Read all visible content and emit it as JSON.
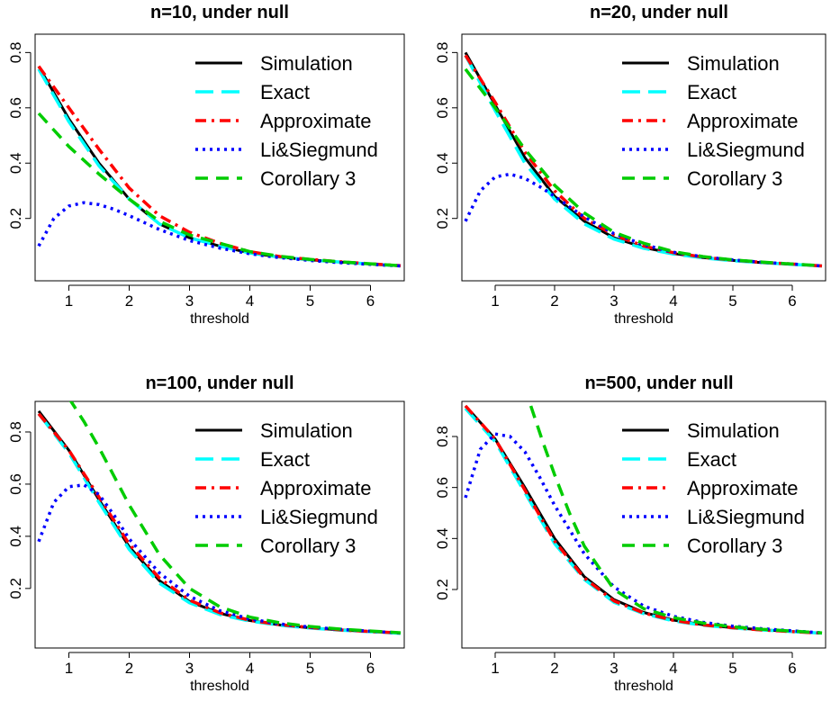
{
  "chart_data": [
    {
      "type": "line",
      "title": "n=10, under null",
      "xlabel": "threshold",
      "ylabel": "",
      "xlim": [
        0.5,
        6.5
      ],
      "ylim": [
        0.02,
        0.85
      ],
      "xticks": [
        "1",
        "2",
        "3",
        "4",
        "5",
        "6"
      ],
      "yticks": [
        "0.2",
        "0.4",
        "0.6",
        "0.8"
      ],
      "legend_position": "top-right",
      "series": [
        {
          "name": "Simulation",
          "color": "#000000",
          "style": "solid",
          "x": [
            0.5,
            1,
            1.5,
            2,
            2.5,
            3,
            3.5,
            4,
            4.5,
            5,
            5.5,
            6,
            6.5
          ],
          "y": [
            0.75,
            0.56,
            0.4,
            0.27,
            0.18,
            0.13,
            0.1,
            0.075,
            0.06,
            0.05,
            0.042,
            0.035,
            0.028
          ]
        },
        {
          "name": "Exact",
          "color": "#00ffff",
          "style": "longdash",
          "x": [
            0.5,
            1,
            1.5,
            2,
            2.5,
            3,
            3.5,
            4,
            4.5,
            5,
            5.5,
            6,
            6.5
          ],
          "y": [
            0.74,
            0.55,
            0.39,
            0.27,
            0.18,
            0.13,
            0.1,
            0.075,
            0.06,
            0.05,
            0.042,
            0.035,
            0.028
          ]
        },
        {
          "name": "Approximate",
          "color": "#ff0000",
          "style": "dotdash",
          "x": [
            0.5,
            1,
            1.5,
            2,
            2.5,
            3,
            3.5,
            4,
            4.5,
            5,
            5.5,
            6,
            6.5
          ],
          "y": [
            0.75,
            0.6,
            0.45,
            0.31,
            0.21,
            0.15,
            0.11,
            0.08,
            0.062,
            0.052,
            0.043,
            0.036,
            0.029
          ]
        },
        {
          "name": "Li&Siegmund",
          "color": "#0000ff",
          "style": "dotted",
          "x": [
            0.5,
            0.75,
            1,
            1.25,
            1.5,
            1.75,
            2,
            2.5,
            3,
            3.5,
            4,
            4.5,
            5,
            5.5,
            6,
            6.5
          ],
          "y": [
            0.1,
            0.2,
            0.245,
            0.257,
            0.25,
            0.233,
            0.21,
            0.16,
            0.12,
            0.093,
            0.072,
            0.058,
            0.048,
            0.04,
            0.034,
            0.028
          ]
        },
        {
          "name": "Corollary 3",
          "color": "#00cc00",
          "style": "dashed",
          "x": [
            0.5,
            1,
            1.5,
            2,
            2.5,
            3,
            3.5,
            4,
            4.5,
            5,
            5.5,
            6,
            6.5
          ],
          "y": [
            0.58,
            0.46,
            0.36,
            0.27,
            0.19,
            0.14,
            0.11,
            0.08,
            0.063,
            0.052,
            0.043,
            0.036,
            0.029
          ]
        }
      ]
    },
    {
      "type": "line",
      "title": "n=20, under null",
      "xlabel": "threshold",
      "ylabel": "",
      "xlim": [
        0.5,
        6.5
      ],
      "ylim": [
        0.02,
        0.85
      ],
      "xticks": [
        "1",
        "2",
        "3",
        "4",
        "5",
        "6"
      ],
      "yticks": [
        "0.2",
        "0.4",
        "0.6",
        "0.8"
      ],
      "legend_position": "top-right",
      "series": [
        {
          "name": "Simulation",
          "color": "#000000",
          "style": "solid",
          "x": [
            0.5,
            1,
            1.5,
            2,
            2.5,
            3,
            3.5,
            4,
            4.5,
            5,
            5.5,
            6,
            6.5
          ],
          "y": [
            0.8,
            0.61,
            0.42,
            0.28,
            0.19,
            0.13,
            0.095,
            0.073,
            0.058,
            0.048,
            0.04,
            0.034,
            0.028
          ]
        },
        {
          "name": "Exact",
          "color": "#00ffff",
          "style": "longdash",
          "x": [
            0.5,
            1,
            1.5,
            2,
            2.5,
            3,
            3.5,
            4,
            4.5,
            5,
            5.5,
            6,
            6.5
          ],
          "y": [
            0.79,
            0.59,
            0.4,
            0.27,
            0.18,
            0.125,
            0.092,
            0.071,
            0.057,
            0.047,
            0.04,
            0.034,
            0.028
          ]
        },
        {
          "name": "Approximate",
          "color": "#ff0000",
          "style": "dotdash",
          "x": [
            0.5,
            1,
            1.5,
            2,
            2.5,
            3,
            3.5,
            4,
            4.5,
            5,
            5.5,
            6,
            6.5
          ],
          "y": [
            0.79,
            0.62,
            0.44,
            0.3,
            0.2,
            0.14,
            0.1,
            0.076,
            0.06,
            0.049,
            0.041,
            0.035,
            0.028
          ]
        },
        {
          "name": "Li&Siegmund",
          "color": "#0000ff",
          "style": "dotted",
          "x": [
            0.5,
            0.75,
            1,
            1.25,
            1.5,
            1.75,
            2,
            2.5,
            3,
            3.5,
            4,
            4.5,
            5,
            5.5,
            6,
            6.5
          ],
          "y": [
            0.19,
            0.3,
            0.35,
            0.36,
            0.345,
            0.315,
            0.28,
            0.205,
            0.145,
            0.105,
            0.078,
            0.061,
            0.05,
            0.041,
            0.035,
            0.028
          ]
        },
        {
          "name": "Corollary 3",
          "color": "#00cc00",
          "style": "dashed",
          "x": [
            0.5,
            1,
            1.5,
            2,
            2.5,
            3,
            3.5,
            4,
            4.5,
            5,
            5.5,
            6,
            6.5
          ],
          "y": [
            0.74,
            0.6,
            0.45,
            0.32,
            0.22,
            0.15,
            0.11,
            0.08,
            0.062,
            0.05,
            0.042,
            0.035,
            0.029
          ]
        }
      ]
    },
    {
      "type": "line",
      "title": "n=100, under null",
      "xlabel": "threshold",
      "ylabel": "",
      "xlim": [
        0.5,
        6.5
      ],
      "ylim": [
        0.02,
        0.9
      ],
      "xticks": [
        "1",
        "2",
        "3",
        "4",
        "5",
        "6"
      ],
      "yticks": [
        "0.2",
        "0.4",
        "0.6",
        "0.8"
      ],
      "legend_position": "top-right",
      "series": [
        {
          "name": "Simulation",
          "color": "#000000",
          "style": "solid",
          "x": [
            0.5,
            1,
            1.5,
            2,
            2.5,
            3,
            3.5,
            4,
            4.5,
            5,
            5.5,
            6,
            6.5
          ],
          "y": [
            0.88,
            0.73,
            0.54,
            0.36,
            0.23,
            0.15,
            0.105,
            0.077,
            0.06,
            0.049,
            0.041,
            0.035,
            0.029
          ]
        },
        {
          "name": "Exact",
          "color": "#00ffff",
          "style": "longdash",
          "x": [
            0.5,
            1,
            1.5,
            2,
            2.5,
            3,
            3.5,
            4,
            4.5,
            5,
            5.5,
            6,
            6.5
          ],
          "y": [
            0.87,
            0.72,
            0.53,
            0.35,
            0.22,
            0.145,
            0.1,
            0.075,
            0.059,
            0.048,
            0.04,
            0.034,
            0.028
          ]
        },
        {
          "name": "Approximate",
          "color": "#ff0000",
          "style": "dotdash",
          "x": [
            0.5,
            1,
            1.5,
            2,
            2.5,
            3,
            3.5,
            4,
            4.5,
            5,
            5.5,
            6,
            6.5
          ],
          "y": [
            0.87,
            0.73,
            0.55,
            0.37,
            0.24,
            0.155,
            0.107,
            0.078,
            0.061,
            0.05,
            0.041,
            0.035,
            0.029
          ]
        },
        {
          "name": "Li&Siegmund",
          "color": "#0000ff",
          "style": "dotted",
          "x": [
            0.5,
            0.75,
            1,
            1.25,
            1.5,
            1.75,
            2,
            2.5,
            3,
            3.5,
            4,
            4.5,
            5,
            5.5,
            6,
            6.5
          ],
          "y": [
            0.38,
            0.53,
            0.59,
            0.597,
            0.56,
            0.48,
            0.39,
            0.26,
            0.17,
            0.115,
            0.083,
            0.064,
            0.052,
            0.043,
            0.036,
            0.029
          ]
        },
        {
          "name": "Corollary 3",
          "color": "#00cc00",
          "style": "dashed",
          "x": [
            1,
            1.25,
            1.5,
            2,
            2.5,
            3,
            3.5,
            4,
            4.5,
            5,
            5.5,
            6,
            6.5
          ],
          "y": [
            0.93,
            0.84,
            0.74,
            0.52,
            0.33,
            0.2,
            0.13,
            0.09,
            0.068,
            0.054,
            0.044,
            0.037,
            0.03
          ]
        }
      ]
    },
    {
      "type": "line",
      "title": "n=500, under null",
      "xlabel": "threshold",
      "ylabel": "",
      "xlim": [
        0.5,
        6.5
      ],
      "ylim": [
        0.02,
        0.92
      ],
      "xticks": [
        "1",
        "2",
        "3",
        "4",
        "5",
        "6"
      ],
      "yticks": [
        "0.2",
        "0.4",
        "0.6",
        "0.8"
      ],
      "legend_position": "top-right",
      "series": [
        {
          "name": "Simulation",
          "color": "#000000",
          "style": "solid",
          "x": [
            0.5,
            1,
            1.5,
            2,
            2.5,
            3,
            3.5,
            4,
            4.5,
            5,
            5.5,
            6,
            6.5
          ],
          "y": [
            0.92,
            0.79,
            0.6,
            0.4,
            0.25,
            0.16,
            0.11,
            0.08,
            0.062,
            0.05,
            0.042,
            0.035,
            0.029
          ]
        },
        {
          "name": "Exact",
          "color": "#00ffff",
          "style": "longdash",
          "x": [
            0.5,
            1,
            1.5,
            2,
            2.5,
            3,
            3.5,
            4,
            4.5,
            5,
            5.5,
            6,
            6.5
          ],
          "y": [
            0.91,
            0.78,
            0.58,
            0.38,
            0.24,
            0.15,
            0.105,
            0.077,
            0.06,
            0.049,
            0.041,
            0.035,
            0.029
          ]
        },
        {
          "name": "Approximate",
          "color": "#ff0000",
          "style": "dotdash",
          "x": [
            0.5,
            1,
            1.5,
            2,
            2.5,
            3,
            3.5,
            4,
            4.5,
            5,
            5.5,
            6,
            6.5
          ],
          "y": [
            0.92,
            0.79,
            0.59,
            0.39,
            0.245,
            0.155,
            0.108,
            0.079,
            0.061,
            0.05,
            0.041,
            0.035,
            0.029
          ]
        },
        {
          "name": "Li&Siegmund",
          "color": "#0000ff",
          "style": "dotted",
          "x": [
            0.5,
            0.75,
            1,
            1.25,
            1.5,
            1.75,
            2,
            2.5,
            3,
            3.5,
            4,
            4.5,
            5,
            5.5,
            6,
            6.5
          ],
          "y": [
            0.56,
            0.75,
            0.81,
            0.8,
            0.74,
            0.64,
            0.53,
            0.34,
            0.21,
            0.135,
            0.095,
            0.071,
            0.056,
            0.046,
            0.038,
            0.03
          ]
        },
        {
          "name": "Corollary 3",
          "color": "#00cc00",
          "style": "dashed",
          "x": [
            1.6,
            1.8,
            2,
            2.25,
            2.5,
            3,
            3.5,
            4,
            4.5,
            5,
            5.5,
            6,
            6.5
          ],
          "y": [
            0.92,
            0.78,
            0.65,
            0.5,
            0.37,
            0.2,
            0.125,
            0.09,
            0.068,
            0.054,
            0.044,
            0.037,
            0.03
          ]
        }
      ]
    }
  ]
}
